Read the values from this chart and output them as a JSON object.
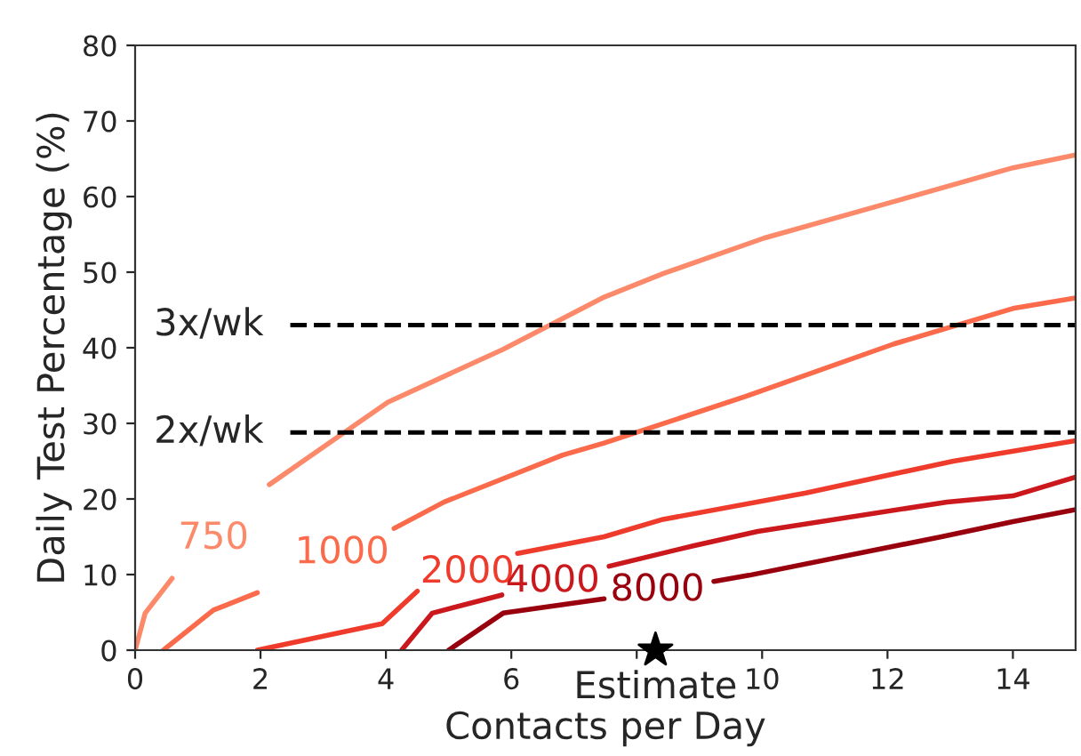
{
  "chart_data": {
    "type": "line",
    "xlabel": "Contacts per Day",
    "ylabel": "Daily Test Percentage (%)",
    "xlim": [
      0,
      15
    ],
    "ylim": [
      0,
      80
    ],
    "xticks": [
      0,
      2,
      4,
      6,
      {
        "value": 8,
        "label": null
      },
      10,
      12,
      14
    ],
    "yticks": [
      0,
      10,
      20,
      30,
      40,
      50,
      60,
      70,
      80
    ],
    "grid": false,
    "legend": false,
    "marker": "none",
    "line_style": "solid",
    "series": [
      {
        "name": "750",
        "color": "#fc8a6a",
        "x": [
          0,
          0.16,
          0.59,
          1.25,
          2.14,
          4.03,
          5.87,
          7.48,
          8.42,
          10.03,
          12.0,
          14.0,
          15.0
        ],
        "values": [
          0,
          4.9,
          9.5,
          null,
          21.9,
          32.8,
          39.8,
          46.7,
          49.8,
          54.5,
          59.1,
          63.8,
          65.5
        ]
      },
      {
        "name": "1000",
        "color": "#fb6a4a",
        "x": [
          0.45,
          1.25,
          1.95,
          3.3,
          4.13,
          4.93,
          6.82,
          7.48,
          9.75,
          12.1,
          14.0,
          15.0
        ],
        "values": [
          0,
          5.3,
          7.6,
          null,
          16.1,
          19.6,
          25.8,
          27.4,
          33.6,
          40.5,
          45.2,
          46.6
        ]
      },
      {
        "name": "2000",
        "color": "#ef3b2c",
        "x": [
          1.95,
          3.94,
          4.5,
          5.3,
          6.1,
          7.48,
          8.42,
          10.7,
          13.05,
          15.0
        ],
        "values": [
          0,
          3.5,
          7.8,
          null,
          12.8,
          15.0,
          17.3,
          20.8,
          25.0,
          27.7
        ]
      },
      {
        "name": "4000",
        "color": "#cb181d",
        "x": [
          4.25,
          4.74,
          5.85,
          6.66,
          7.56,
          8.9,
          9.93,
          12.95,
          14.0,
          15.0
        ],
        "values": [
          0,
          4.9,
          7.3,
          null,
          11.1,
          13.8,
          15.7,
          19.6,
          20.4,
          22.9
        ]
      },
      {
        "name": "8000",
        "color": "#99000d",
        "x": [
          5.0,
          5.87,
          7.48,
          8.33,
          9.23,
          9.79,
          12.86,
          14.0,
          15.0
        ],
        "values": [
          0,
          4.9,
          6.8,
          null,
          9.1,
          9.9,
          15.0,
          17.0,
          18.6
        ]
      },
      {
        "type": "scatter",
        "marker": "star",
        "color": "#000000",
        "x": [
          8.3
        ],
        "values": [
          0
        ]
      }
    ],
    "ref_lines": [
      {
        "axis": "y",
        "value": 43,
        "label": "3x/wk",
        "color": "#000000",
        "line_style": "dashed"
      },
      {
        "axis": "y",
        "value": 28.8,
        "label": "2x/wk",
        "color": "#000000",
        "line_style": "dashed"
      }
    ],
    "annotations": [
      {
        "text": "Estimate",
        "x": 8.3,
        "y": 0
      }
    ]
  }
}
